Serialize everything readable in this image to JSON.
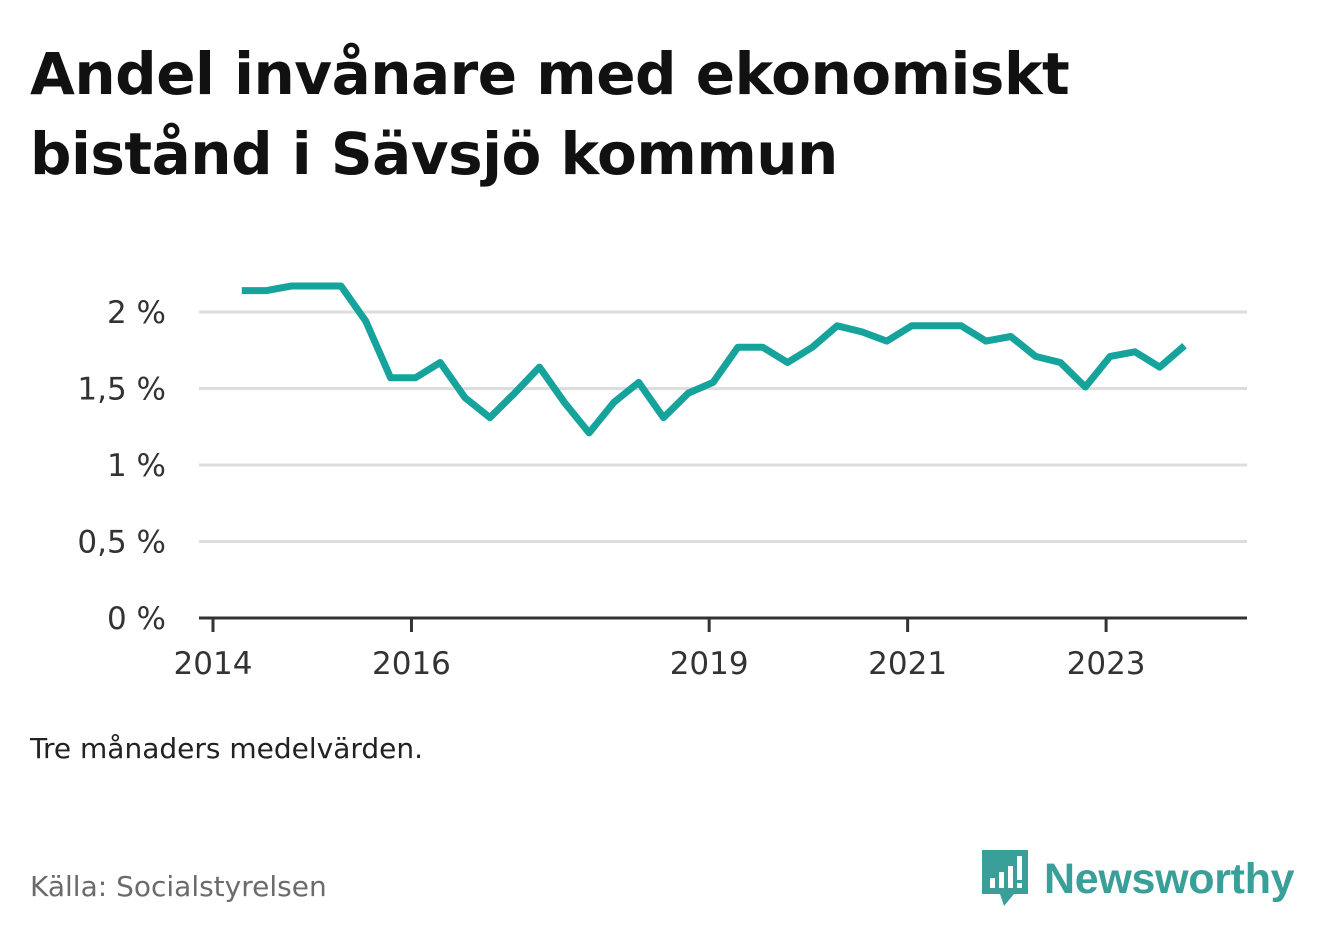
{
  "title_lines": [
    "Andel invånare med ekonomiskt",
    "bistånd i Sävsjö kommun"
  ],
  "note": "Tre månaders medelvärden.",
  "source": "Källa: Socialstyrelsen",
  "brand": {
    "name": "Newsworthy",
    "color": "#3a9e99",
    "logo_icon": "newsworthy-chart-bubble-icon"
  },
  "colors": {
    "line": "#16a39c",
    "grid": "#dddddd",
    "axis": "#333333"
  },
  "chart_data": {
    "type": "line",
    "title": "Andel invånare med ekonomiskt bistånd i Sävsjö kommun",
    "xlabel": "",
    "ylabel": "",
    "xlim": [
      2014,
      2024.42
    ],
    "ylim": [
      0,
      2
    ],
    "x_ticks": [
      2014,
      2016,
      2019,
      2021,
      2023
    ],
    "x_tick_labels": [
      "2014",
      "2016",
      "2019",
      "2021",
      "2023"
    ],
    "y_ticks": [
      0,
      0.5,
      1,
      1.5,
      2
    ],
    "y_tick_labels": [
      "0 %",
      "0,5 %",
      "1 %",
      "1,5 %",
      "2 %"
    ],
    "grid": true,
    "series": [
      {
        "name": "Andel invånare med ekonomiskt bistånd",
        "x": [
          2014.29,
          2014.54,
          2014.79,
          2015.04,
          2015.29,
          2015.54,
          2015.79,
          2016.04,
          2016.29,
          2016.54,
          2016.79,
          2017.04,
          2017.29,
          2017.54,
          2017.79,
          2018.04,
          2018.29,
          2018.54,
          2018.79,
          2019.04,
          2019.29,
          2019.54,
          2019.79,
          2020.04,
          2020.29,
          2020.54,
          2020.79,
          2021.04,
          2021.29,
          2021.54,
          2021.79,
          2022.04,
          2022.29,
          2022.54,
          2022.79,
          2023.04,
          2023.29,
          2023.54,
          2023.79
        ],
        "values": [
          2.14,
          2.14,
          2.17,
          2.17,
          2.17,
          1.94,
          1.57,
          1.57,
          1.67,
          1.44,
          1.31,
          1.47,
          1.64,
          1.41,
          1.21,
          1.41,
          1.54,
          1.31,
          1.47,
          1.54,
          1.77,
          1.77,
          1.67,
          1.77,
          1.91,
          1.87,
          1.81,
          1.91,
          1.91,
          1.91,
          1.81,
          1.84,
          1.71,
          1.67,
          1.51,
          1.71,
          1.74,
          1.64,
          1.78
        ]
      }
    ]
  }
}
